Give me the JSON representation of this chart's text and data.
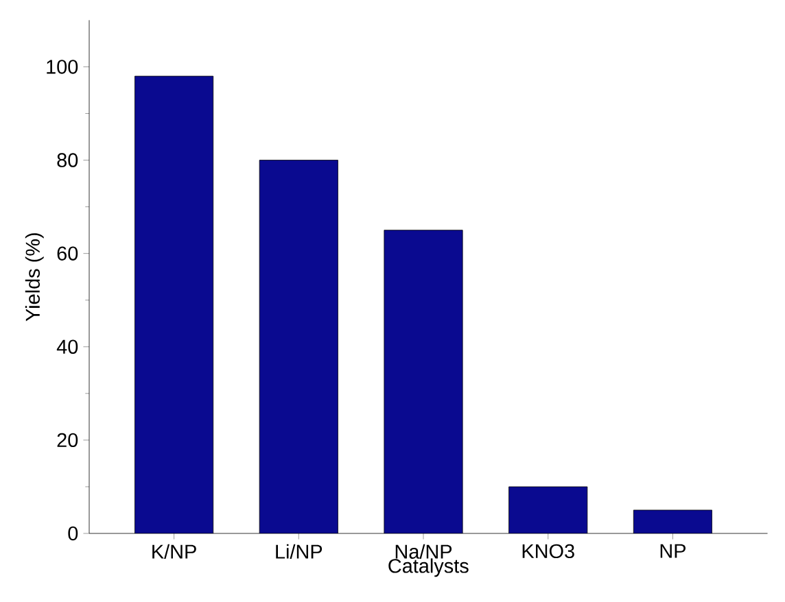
{
  "chart_data": {
    "type": "bar",
    "xlabel": "Catalysts",
    "ylabel": "Yields (%)",
    "categories": [
      "K/NP",
      "Li/NP",
      "Na/NP",
      "KNO3",
      "NP"
    ],
    "values": [
      98,
      80,
      65,
      10,
      5
    ],
    "color": "#0a0a90",
    "ylim": [
      0,
      110
    ],
    "yticks": [
      0,
      20,
      40,
      60,
      80,
      100
    ],
    "grid": false
  }
}
